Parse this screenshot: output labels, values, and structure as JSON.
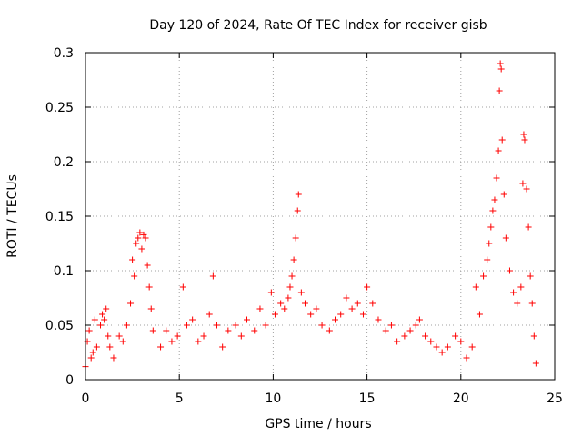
{
  "chart_data": {
    "type": "scatter",
    "title": "Day 120 of 2024, Rate Of TEC Index for receiver gisb",
    "xlabel": "GPS time / hours",
    "ylabel": "ROTI / TECUs",
    "xlim": [
      0,
      25
    ],
    "ylim": [
      0,
      0.3
    ],
    "x_ticks": [
      0,
      5,
      10,
      15,
      20,
      25
    ],
    "x_tick_labels": [
      "0",
      "5",
      "10",
      "15",
      "20",
      "25"
    ],
    "y_ticks": [
      0,
      0.05,
      0.1,
      0.15,
      0.2,
      0.25,
      0.3
    ],
    "y_tick_labels": [
      "0",
      "0.05",
      "0.1",
      "0.15",
      "0.2",
      "0.25",
      "0.3"
    ],
    "grid": true,
    "marker": "+",
    "series_color": "#ff0000",
    "grid_color": "#a0a0a0",
    "series": [
      {
        "name": "ROTI",
        "points": [
          [
            0.0,
            0.012
          ],
          [
            0.1,
            0.035
          ],
          [
            0.2,
            0.045
          ],
          [
            0.3,
            0.02
          ],
          [
            0.4,
            0.025
          ],
          [
            0.5,
            0.055
          ],
          [
            0.6,
            0.03
          ],
          [
            0.8,
            0.05
          ],
          [
            0.9,
            0.06
          ],
          [
            1.0,
            0.055
          ],
          [
            1.1,
            0.065
          ],
          [
            1.2,
            0.04
          ],
          [
            1.3,
            0.03
          ],
          [
            1.5,
            0.02
          ],
          [
            1.8,
            0.04
          ],
          [
            2.0,
            0.035
          ],
          [
            2.2,
            0.05
          ],
          [
            2.4,
            0.07
          ],
          [
            2.5,
            0.11
          ],
          [
            2.6,
            0.095
          ],
          [
            2.7,
            0.125
          ],
          [
            2.8,
            0.13
          ],
          [
            2.9,
            0.135
          ],
          [
            3.0,
            0.12
          ],
          [
            3.1,
            0.133
          ],
          [
            3.2,
            0.13
          ],
          [
            3.3,
            0.105
          ],
          [
            3.4,
            0.085
          ],
          [
            3.5,
            0.065
          ],
          [
            3.6,
            0.045
          ],
          [
            4.0,
            0.03
          ],
          [
            4.3,
            0.045
          ],
          [
            4.6,
            0.035
          ],
          [
            4.9,
            0.04
          ],
          [
            5.2,
            0.085
          ],
          [
            5.4,
            0.05
          ],
          [
            5.7,
            0.055
          ],
          [
            6.0,
            0.035
          ],
          [
            6.3,
            0.04
          ],
          [
            6.6,
            0.06
          ],
          [
            6.8,
            0.095
          ],
          [
            7.0,
            0.05
          ],
          [
            7.3,
            0.03
          ],
          [
            7.6,
            0.045
          ],
          [
            8.0,
            0.05
          ],
          [
            8.3,
            0.04
          ],
          [
            8.6,
            0.055
          ],
          [
            9.0,
            0.045
          ],
          [
            9.3,
            0.065
          ],
          [
            9.6,
            0.05
          ],
          [
            9.9,
            0.08
          ],
          [
            10.1,
            0.06
          ],
          [
            10.4,
            0.07
          ],
          [
            10.6,
            0.065
          ],
          [
            10.8,
            0.075
          ],
          [
            10.9,
            0.085
          ],
          [
            11.0,
            0.095
          ],
          [
            11.1,
            0.11
          ],
          [
            11.2,
            0.13
          ],
          [
            11.3,
            0.155
          ],
          [
            11.35,
            0.17
          ],
          [
            11.5,
            0.08
          ],
          [
            11.7,
            0.07
          ],
          [
            12.0,
            0.06
          ],
          [
            12.3,
            0.065
          ],
          [
            12.6,
            0.05
          ],
          [
            13.0,
            0.045
          ],
          [
            13.3,
            0.055
          ],
          [
            13.6,
            0.06
          ],
          [
            13.9,
            0.075
          ],
          [
            14.2,
            0.065
          ],
          [
            14.5,
            0.07
          ],
          [
            14.8,
            0.06
          ],
          [
            15.0,
            0.085
          ],
          [
            15.3,
            0.07
          ],
          [
            15.6,
            0.055
          ],
          [
            16.0,
            0.045
          ],
          [
            16.3,
            0.05
          ],
          [
            16.6,
            0.035
          ],
          [
            17.0,
            0.04
          ],
          [
            17.3,
            0.045
          ],
          [
            17.6,
            0.05
          ],
          [
            17.8,
            0.055
          ],
          [
            18.1,
            0.04
          ],
          [
            18.4,
            0.035
          ],
          [
            18.7,
            0.03
          ],
          [
            19.0,
            0.025
          ],
          [
            19.3,
            0.03
          ],
          [
            19.7,
            0.04
          ],
          [
            20.0,
            0.035
          ],
          [
            20.3,
            0.02
          ],
          [
            20.6,
            0.03
          ],
          [
            20.8,
            0.085
          ],
          [
            21.0,
            0.06
          ],
          [
            21.2,
            0.095
          ],
          [
            21.4,
            0.11
          ],
          [
            21.5,
            0.125
          ],
          [
            21.6,
            0.14
          ],
          [
            21.7,
            0.155
          ],
          [
            21.8,
            0.165
          ],
          [
            21.9,
            0.185
          ],
          [
            22.0,
            0.21
          ],
          [
            22.05,
            0.265
          ],
          [
            22.1,
            0.29
          ],
          [
            22.15,
            0.285
          ],
          [
            22.2,
            0.22
          ],
          [
            22.3,
            0.17
          ],
          [
            22.4,
            0.13
          ],
          [
            22.6,
            0.1
          ],
          [
            22.8,
            0.08
          ],
          [
            23.0,
            0.07
          ],
          [
            23.2,
            0.085
          ],
          [
            23.3,
            0.18
          ],
          [
            23.35,
            0.225
          ],
          [
            23.4,
            0.22
          ],
          [
            23.5,
            0.175
          ],
          [
            23.6,
            0.14
          ],
          [
            23.7,
            0.095
          ],
          [
            23.8,
            0.07
          ],
          [
            23.9,
            0.04
          ],
          [
            24.0,
            0.015
          ]
        ]
      }
    ]
  }
}
